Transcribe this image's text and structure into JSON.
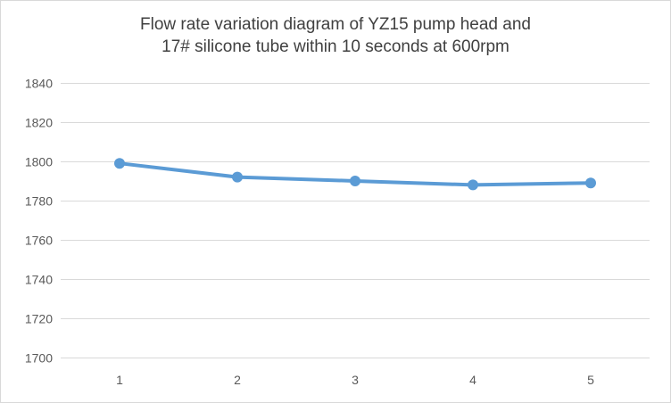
{
  "chart_data": {
    "type": "line",
    "title_lines": [
      "Flow rate variation diagram of YZ15 pump head and",
      "17# silicone tube within 10 seconds at 600rpm"
    ],
    "categories": [
      "1",
      "2",
      "3",
      "4",
      "5"
    ],
    "series": [
      {
        "values": [
          1799,
          1792,
          1790,
          1788,
          1789
        ],
        "color": "#5b9bd5"
      }
    ],
    "y_ticks": [
      1700,
      1720,
      1740,
      1760,
      1780,
      1800,
      1820,
      1840
    ],
    "ylim": [
      1700,
      1840
    ],
    "xlabel": "",
    "ylabel": "",
    "grid": true,
    "legend": "none",
    "gridline_color": "#d9d9d9"
  }
}
